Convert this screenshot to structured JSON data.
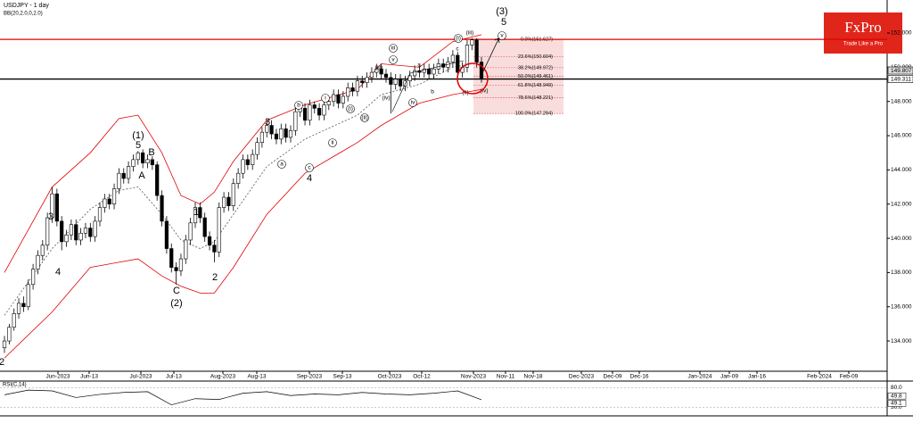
{
  "chart_data": {
    "type": "candlestick",
    "title": "USDJPY - 1 day",
    "subtitle": "BB(20,2.0,0,2.0)",
    "brand": "FxPro",
    "brand_tagline": "Trade Like a Pro",
    "ylim": [
      132.23,
      153.93
    ],
    "yticks": [
      {
        "value": 152,
        "label": "152.000"
      },
      {
        "value": 150,
        "label": "150.000"
      },
      {
        "value": 148,
        "label": "148.000"
      },
      {
        "value": 146,
        "label": "146.000"
      },
      {
        "value": 144,
        "label": "144.000"
      },
      {
        "value": 142,
        "label": "142.000"
      },
      {
        "value": 140,
        "label": "140.000"
      },
      {
        "value": 138,
        "label": "138.000"
      },
      {
        "value": 136,
        "label": "136.000"
      },
      {
        "value": 134,
        "label": "134.000"
      }
    ],
    "price_markers": [
      {
        "value": 149.807,
        "label": "149.807"
      },
      {
        "value": 149.311,
        "label": "149.311"
      }
    ],
    "levels": [
      {
        "value": 151.627,
        "color": "#e00000"
      },
      {
        "value": 149.311,
        "color": "#000000"
      }
    ],
    "fib": [
      {
        "value": 151.627,
        "label": "0.0%(151.627)"
      },
      {
        "value": 150.604,
        "label": "23.6%(150.604)"
      },
      {
        "value": 149.972,
        "label": "38.2%(149.972)"
      },
      {
        "value": 149.461,
        "label": "50.0%(149.461)"
      },
      {
        "value": 148.949,
        "label": "61.8%(148.949)"
      },
      {
        "value": 148.221,
        "label": "78.6%(148.221)"
      },
      {
        "value": 147.294,
        "label": "100.0%(147.294)"
      }
    ],
    "date_labels": [
      "Jun-2023",
      "Jun-13",
      "Jul-2023",
      "Jul-13",
      "Aug-2023",
      "Aug-13",
      "Sep-2023",
      "Sep-13",
      "Oct-2023",
      "Oct-12",
      "Nov-2023",
      "Nov-11",
      "Nov-18",
      "Dec-2023",
      "Dec-09",
      "Dec-16",
      "Jan-2024",
      "Jan-09",
      "Jan-16",
      "Feb-2024",
      "Feb-09"
    ],
    "candles": [
      [
        133.6,
        134.3,
        133.3,
        134.0
      ],
      [
        134.0,
        135.0,
        133.8,
        134.8
      ],
      [
        134.8,
        135.9,
        134.6,
        135.6
      ],
      [
        135.6,
        136.5,
        135.3,
        136.2
      ],
      [
        136.2,
        136.6,
        135.7,
        136.0
      ],
      [
        136.0,
        137.6,
        135.8,
        137.3
      ],
      [
        137.3,
        138.5,
        137.0,
        138.2
      ],
      [
        138.2,
        139.3,
        137.9,
        139.0
      ],
      [
        139.0,
        139.9,
        138.7,
        139.6
      ],
      [
        139.6,
        141.5,
        139.3,
        141.2
      ],
      [
        141.2,
        143.0,
        140.9,
        142.6
      ],
      [
        142.6,
        142.9,
        140.7,
        141.0
      ],
      [
        141.0,
        141.3,
        139.3,
        139.8
      ],
      [
        139.8,
        140.5,
        139.5,
        140.2
      ],
      [
        140.2,
        141.1,
        139.9,
        140.8
      ],
      [
        140.8,
        141.1,
        139.6,
        139.9
      ],
      [
        139.9,
        140.6,
        139.6,
        140.3
      ],
      [
        140.3,
        140.9,
        140.0,
        140.6
      ],
      [
        140.6,
        140.9,
        139.8,
        140.1
      ],
      [
        140.1,
        141.3,
        139.8,
        141.0
      ],
      [
        141.0,
        142.1,
        140.7,
        141.8
      ],
      [
        141.8,
        142.6,
        141.5,
        142.3
      ],
      [
        142.3,
        142.6,
        141.7,
        142.0
      ],
      [
        142.0,
        143.2,
        141.7,
        142.9
      ],
      [
        142.9,
        144.1,
        142.6,
        143.8
      ],
      [
        143.8,
        144.1,
        143.2,
        143.5
      ],
      [
        143.5,
        144.5,
        143.2,
        144.2
      ],
      [
        144.2,
        144.9,
        143.9,
        144.6
      ],
      [
        144.6,
        145.1,
        144.3,
        145.0
      ],
      [
        145.0,
        145.2,
        144.1,
        144.4
      ],
      [
        144.4,
        144.9,
        144.1,
        144.6
      ],
      [
        144.6,
        144.8,
        144.0,
        144.3
      ],
      [
        144.3,
        144.5,
        142.2,
        142.5
      ],
      [
        142.5,
        142.8,
        140.7,
        141.0
      ],
      [
        141.0,
        141.3,
        139.1,
        139.4
      ],
      [
        139.4,
        139.7,
        138.0,
        138.3
      ],
      [
        138.3,
        138.6,
        137.3,
        138.1
      ],
      [
        138.1,
        139.1,
        137.8,
        138.8
      ],
      [
        138.8,
        140.2,
        138.5,
        139.9
      ],
      [
        139.9,
        141.2,
        139.6,
        140.9
      ],
      [
        140.9,
        142.1,
        140.6,
        141.8
      ],
      [
        141.8,
        142.1,
        140.9,
        141.2
      ],
      [
        141.2,
        141.5,
        139.8,
        140.1
      ],
      [
        140.1,
        140.4,
        139.3,
        139.6
      ],
      [
        139.6,
        139.9,
        138.6,
        139.2
      ],
      [
        139.2,
        142.1,
        138.9,
        141.8
      ],
      [
        141.8,
        142.7,
        141.5,
        142.4
      ],
      [
        142.4,
        142.7,
        141.6,
        141.9
      ],
      [
        141.9,
        143.5,
        141.6,
        143.2
      ],
      [
        143.2,
        144.1,
        142.9,
        143.8
      ],
      [
        143.8,
        144.9,
        143.5,
        144.6
      ],
      [
        144.6,
        144.9,
        144.0,
        144.3
      ],
      [
        144.3,
        145.2,
        144.0,
        144.9
      ],
      [
        144.9,
        145.9,
        144.6,
        145.6
      ],
      [
        145.6,
        146.5,
        145.3,
        146.2
      ],
      [
        146.2,
        146.9,
        145.9,
        146.6
      ],
      [
        146.6,
        146.9,
        145.8,
        146.1
      ],
      [
        146.1,
        146.4,
        145.5,
        145.8
      ],
      [
        145.8,
        146.7,
        145.5,
        146.4
      ],
      [
        146.4,
        146.7,
        145.6,
        145.9
      ],
      [
        145.9,
        146.6,
        145.6,
        146.3
      ],
      [
        146.3,
        147.7,
        146.0,
        147.4
      ],
      [
        147.4,
        147.9,
        147.1,
        147.6
      ],
      [
        147.6,
        147.9,
        146.6,
        146.9
      ],
      [
        146.9,
        148.1,
        146.6,
        147.8
      ],
      [
        147.8,
        148.0,
        147.3,
        147.6
      ],
      [
        147.6,
        147.9,
        146.9,
        147.2
      ],
      [
        147.2,
        148.1,
        146.9,
        147.8
      ],
      [
        147.8,
        148.3,
        147.5,
        148.0
      ],
      [
        148.0,
        148.7,
        147.7,
        148.4
      ],
      [
        148.4,
        148.7,
        147.6,
        147.9
      ],
      [
        147.9,
        148.6,
        147.6,
        148.3
      ],
      [
        148.3,
        149.1,
        148.0,
        148.8
      ],
      [
        148.8,
        149.1,
        148.3,
        148.6
      ],
      [
        148.6,
        149.5,
        148.3,
        149.2
      ],
      [
        149.2,
        149.5,
        148.8,
        149.1
      ],
      [
        149.1,
        149.7,
        148.8,
        149.4
      ],
      [
        149.4,
        150.0,
        149.1,
        149.7
      ],
      [
        149.7,
        150.2,
        149.4,
        149.9
      ],
      [
        149.9,
        150.2,
        149.3,
        149.6
      ],
      [
        149.6,
        149.9,
        149.1,
        149.4
      ],
      [
        149.4,
        149.7,
        147.3,
        149.0
      ],
      [
        149.0,
        149.6,
        148.7,
        149.3
      ],
      [
        149.3,
        149.6,
        148.6,
        148.9
      ],
      [
        148.9,
        149.5,
        148.6,
        149.2
      ],
      [
        149.2,
        149.8,
        148.9,
        149.5
      ],
      [
        149.5,
        150.1,
        149.2,
        149.8
      ],
      [
        149.8,
        150.1,
        149.4,
        149.7
      ],
      [
        149.7,
        150.2,
        149.4,
        149.9
      ],
      [
        149.9,
        150.2,
        149.3,
        149.6
      ],
      [
        149.6,
        150.2,
        149.3,
        149.9
      ],
      [
        149.9,
        150.5,
        149.6,
        150.2
      ],
      [
        150.2,
        150.5,
        149.7,
        150.0
      ],
      [
        150.0,
        150.6,
        149.7,
        150.3
      ],
      [
        150.3,
        151.0,
        150.0,
        150.7
      ],
      [
        150.7,
        150.9,
        149.4,
        149.7
      ],
      [
        149.7,
        150.3,
        149.4,
        150.0
      ],
      [
        150.0,
        151.6,
        149.7,
        151.3
      ],
      [
        151.3,
        151.7,
        151.0,
        151.6
      ],
      [
        151.6,
        151.7,
        150.0,
        150.3
      ],
      [
        150.3,
        150.6,
        149.1,
        149.3
      ]
    ],
    "bb_x": [
      0,
      10,
      18,
      24,
      28,
      33,
      37,
      41,
      44,
      48,
      55,
      63,
      74,
      79,
      87,
      94,
      100
    ],
    "bb_upper": [
      138.0,
      143.0,
      145.0,
      147.0,
      147.2,
      145.0,
      142.5,
      142.0,
      142.7,
      144.5,
      146.9,
      147.8,
      148.7,
      150.2,
      150.0,
      151.5,
      151.9
    ],
    "bb_mid": [
      135.5,
      139.4,
      141.7,
      142.8,
      143.0,
      141.4,
      139.9,
      139.4,
      139.8,
      141.4,
      144.2,
      145.8,
      147.2,
      148.4,
      149.0,
      150.0,
      150.3
    ],
    "bb_lower": [
      133.0,
      135.7,
      138.3,
      138.6,
      138.8,
      137.8,
      137.2,
      136.8,
      136.8,
      138.3,
      141.4,
      143.8,
      145.6,
      146.6,
      147.9,
      148.4,
      148.7
    ],
    "annotations": [
      "(3)",
      "5",
      "(1)",
      "5",
      "B",
      "A",
      "1",
      "2",
      "C",
      "(2)",
      "3",
      "4",
      "3",
      "4",
      "2",
      "i",
      "ii",
      "a",
      "b",
      "c",
      "(i)",
      "(ii)",
      "iii",
      "v",
      "(iii)",
      "(iv)",
      "iv",
      "a",
      "b",
      "c",
      "(i)",
      "(iii)",
      "(ii)",
      "(iv)",
      "v"
    ],
    "rsi_title": "RSI(C,14)",
    "rsi_ylim": [
      10,
      95
    ],
    "rsi_yticks": [
      {
        "value": 80,
        "label": "80.0"
      },
      {
        "value": 30,
        "label": "30.0"
      }
    ],
    "rsi_markers": [
      {
        "value": 49.8,
        "label": "49.8"
      },
      {
        "value": 49.1,
        "label": "49.1"
      }
    ],
    "rsi_x": [
      0,
      5,
      10,
      15,
      20,
      25,
      30,
      35,
      40,
      45,
      50,
      55,
      60,
      65,
      70,
      75,
      80,
      85,
      90,
      95,
      100
    ],
    "rsi_values": [
      62,
      74,
      72,
      55,
      63,
      68,
      70,
      36,
      52,
      50,
      66,
      70,
      60,
      64,
      62,
      68,
      64,
      62,
      66,
      72,
      49.1
    ]
  }
}
